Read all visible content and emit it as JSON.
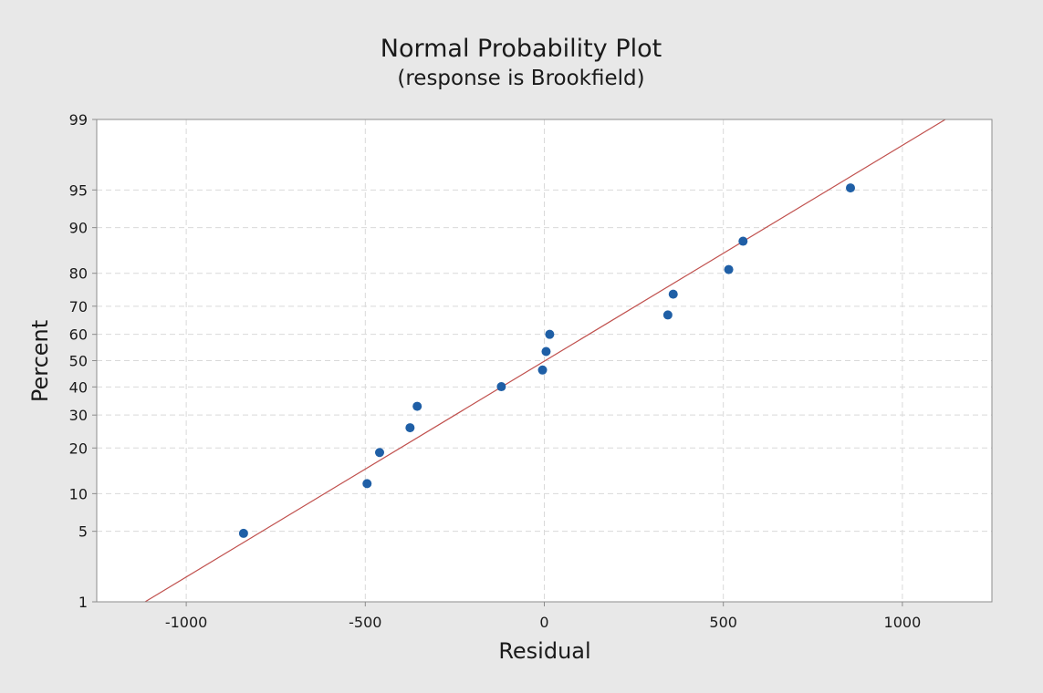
{
  "chart_data": {
    "type": "scatter",
    "title": "Normal Probability Plot",
    "subtitle": "(response is Brookfield)",
    "xlabel": "Residual",
    "ylabel": "Percent",
    "xlim": [
      -1250,
      1250
    ],
    "ylim": [
      1,
      99
    ],
    "y_scale": "normal-probability",
    "grid": true,
    "x_ticks": [
      -1000,
      -500,
      0,
      500,
      1000
    ],
    "x_tick_labels": [
      "-1000",
      "-500",
      "0",
      "500",
      "1000"
    ],
    "y_ticks": [
      1,
      5,
      10,
      20,
      30,
      40,
      50,
      60,
      70,
      80,
      90,
      95,
      99
    ],
    "y_tick_labels": [
      "1",
      "5",
      "10",
      "20",
      "30",
      "40",
      "50",
      "60",
      "70",
      "80",
      "90",
      "95",
      "99"
    ],
    "points": [
      {
        "x": -840,
        "y": 4.8
      },
      {
        "x": -495,
        "y": 11.8
      },
      {
        "x": -460,
        "y": 18.8
      },
      {
        "x": -375,
        "y": 25.9
      },
      {
        "x": -355,
        "y": 33.0
      },
      {
        "x": -120,
        "y": 40.1
      },
      {
        "x": -5,
        "y": 46.4
      },
      {
        "x": 5,
        "y": 53.5
      },
      {
        "x": 15,
        "y": 60.0
      },
      {
        "x": 345,
        "y": 67.0
      },
      {
        "x": 360,
        "y": 73.9
      },
      {
        "x": 515,
        "y": 81.0
      },
      {
        "x": 555,
        "y": 87.5
      },
      {
        "x": 855,
        "y": 95.2
      }
    ],
    "fit_line": {
      "x": [
        -1115,
        1120
      ],
      "y": [
        1,
        99
      ]
    },
    "colors": {
      "points": "#1f5fa6",
      "fit_line": "#c0504d",
      "grid": "#d9d9d9",
      "plot_background": "#ffffff",
      "figure_background": "#e8e8e8"
    }
  }
}
